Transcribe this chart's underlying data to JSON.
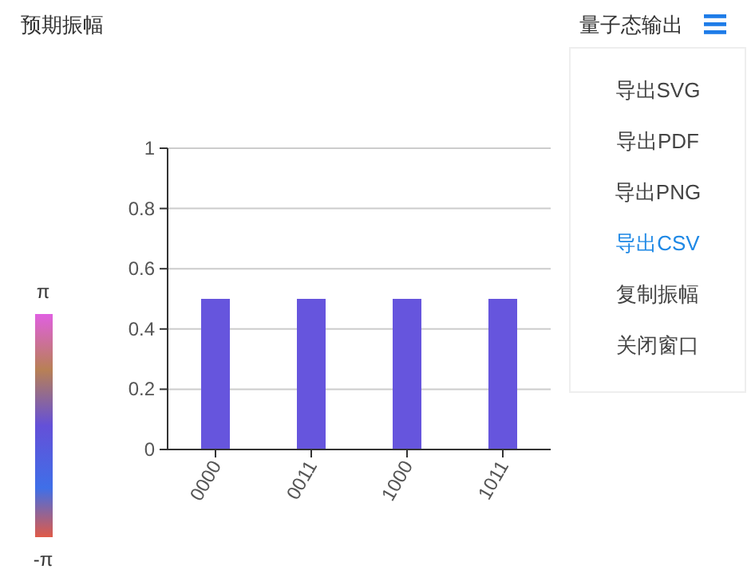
{
  "chart_data": {
    "type": "bar",
    "title": "预期振幅",
    "categories": [
      "0000",
      "0011",
      "1000",
      "1011"
    ],
    "values": [
      0.5,
      0.5,
      0.5,
      0.5
    ],
    "color": "#6655dd",
    "ylim": [
      0,
      1
    ],
    "yticks": [
      0,
      0.2,
      0.4,
      0.6,
      0.8,
      1
    ],
    "grid": "y",
    "annotations": [
      "量子态输出",
      "导出SVG",
      "导出PDF",
      "导出PNG",
      "导出CSV",
      "复制振幅",
      "关闭窗口",
      "π",
      "-π"
    ]
  }
}
